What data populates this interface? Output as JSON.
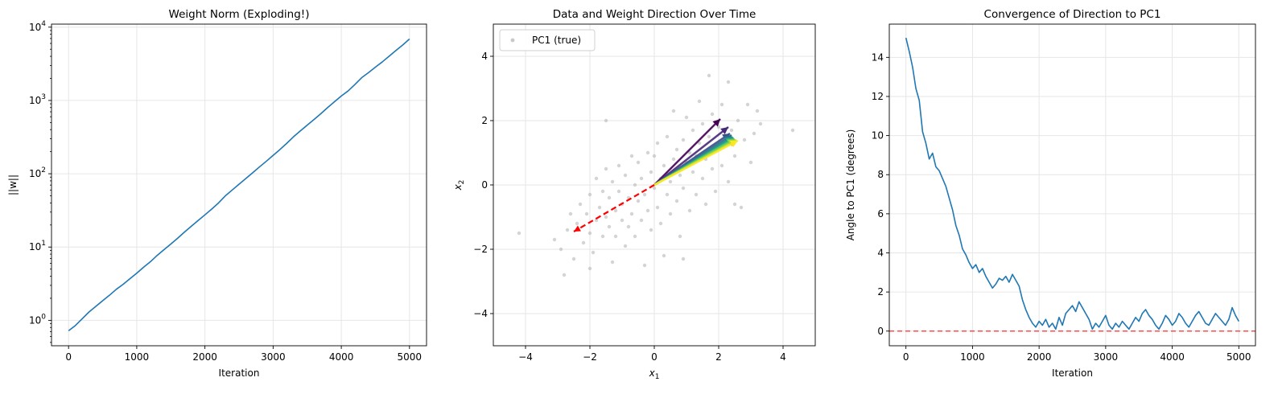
{
  "chart_data": [
    {
      "type": "line",
      "title": "Weight Norm (Exploding!)",
      "xlabel": "Iteration",
      "ylabel": "||w||",
      "xlim": [
        -250,
        5250
      ],
      "ylim": [
        0.45,
        11000
      ],
      "yscale": "log",
      "grid": true,
      "xticks": [
        0,
        1000,
        2000,
        3000,
        4000,
        5000
      ],
      "xticklabels": [
        "0",
        "1000",
        "2000",
        "3000",
        "4000",
        "5000"
      ],
      "yticks": [
        1,
        10,
        100,
        1000,
        10000
      ],
      "yticklabels": [
        "10^0",
        "10^1",
        "10^2",
        "10^3",
        "10^4"
      ],
      "series": [
        {
          "color": "#1f77b4",
          "x": [
            0,
            100,
            200,
            300,
            400,
            500,
            600,
            700,
            800,
            900,
            1000,
            1100,
            1200,
            1300,
            1400,
            1500,
            1600,
            1700,
            1800,
            1900,
            2000,
            2100,
            2200,
            2300,
            2400,
            2500,
            2600,
            2700,
            2800,
            2900,
            3000,
            3100,
            3200,
            3300,
            3400,
            3500,
            3600,
            3700,
            3800,
            3900,
            4000,
            4100,
            4200,
            4300,
            4400,
            4500,
            4600,
            4700,
            4800,
            4900,
            5000
          ],
          "y": [
            0.72,
            0.85,
            1.05,
            1.3,
            1.55,
            1.85,
            2.2,
            2.65,
            3.1,
            3.7,
            4.4,
            5.3,
            6.3,
            7.7,
            9.2,
            11.0,
            13.2,
            16.0,
            19.2,
            23.0,
            27.5,
            33.0,
            40.0,
            50.0,
            60.0,
            72.0,
            86.0,
            103,
            124,
            148,
            178,
            214,
            260,
            320,
            385,
            460,
            550,
            660,
            800,
            960,
            1150,
            1350,
            1650,
            2050,
            2400,
            2850,
            3350,
            4000,
            4800,
            5700,
            6900
          ]
        }
      ]
    },
    {
      "type": "scatter",
      "title": "Data and Weight Direction Over Time",
      "xlabel": "x",
      "xlabel_sub": "1",
      "ylabel": "x",
      "ylabel_sub": "2",
      "xlim": [
        -5,
        5
      ],
      "ylim": [
        -5,
        5
      ],
      "grid": true,
      "xticks": [
        -4,
        -2,
        0,
        2,
        4
      ],
      "xticklabels": [
        "−4",
        "−2",
        "0",
        "2",
        "4"
      ],
      "yticks": [
        -4,
        -2,
        0,
        2,
        4
      ],
      "yticklabels": [
        "−4",
        "−2",
        "0",
        "2",
        "4"
      ],
      "legend": {
        "position": "top-left",
        "entries": [
          "PC1 (true)"
        ]
      },
      "points_color": "#b0b0b0",
      "points": [
        [
          -4.2,
          -1.5
        ],
        [
          -3.1,
          -1.7
        ],
        [
          -2.9,
          -2.0
        ],
        [
          -2.7,
          -1.4
        ],
        [
          -2.6,
          -0.9
        ],
        [
          -2.5,
          -2.3
        ],
        [
          -2.4,
          -1.2
        ],
        [
          -2.3,
          -0.6
        ],
        [
          -2.2,
          -1.8
        ],
        [
          -2.1,
          -0.9
        ],
        [
          -2.0,
          -1.5
        ],
        [
          -2.0,
          -0.3
        ],
        [
          -1.9,
          -2.1
        ],
        [
          -1.8,
          -1.1
        ],
        [
          -1.8,
          0.2
        ],
        [
          -1.7,
          -0.7
        ],
        [
          -1.6,
          -1.6
        ],
        [
          -1.6,
          -0.2
        ],
        [
          -1.5,
          -1.0
        ],
        [
          -1.5,
          0.5
        ],
        [
          -1.4,
          -1.3
        ],
        [
          -1.4,
          -0.4
        ],
        [
          -1.3,
          -2.4
        ],
        [
          -1.3,
          0.1
        ],
        [
          -1.2,
          -0.8
        ],
        [
          -1.2,
          -1.6
        ],
        [
          -1.1,
          0.6
        ],
        [
          -1.1,
          -0.2
        ],
        [
          -1.0,
          -1.1
        ],
        [
          -1.0,
          -0.6
        ],
        [
          -0.9,
          -1.9
        ],
        [
          -0.9,
          0.3
        ],
        [
          -0.8,
          -0.4
        ],
        [
          -0.8,
          -1.3
        ],
        [
          -0.7,
          0.9
        ],
        [
          -0.7,
          -0.9
        ],
        [
          -0.6,
          0.0
        ],
        [
          -0.6,
          -1.6
        ],
        [
          -0.5,
          -0.5
        ],
        [
          -0.5,
          0.7
        ],
        [
          -0.4,
          -1.1
        ],
        [
          -0.4,
          0.2
        ],
        [
          -0.3,
          -2.5
        ],
        [
          -0.3,
          -0.3
        ],
        [
          -0.2,
          1.0
        ],
        [
          -0.2,
          -0.8
        ],
        [
          -0.1,
          0.4
        ],
        [
          -0.1,
          -1.4
        ],
        [
          0.0,
          -0.1
        ],
        [
          0.0,
          0.9
        ],
        [
          0.1,
          -0.7
        ],
        [
          0.1,
          1.3
        ],
        [
          0.2,
          0.2
        ],
        [
          0.2,
          -1.2
        ],
        [
          0.3,
          0.6
        ],
        [
          0.3,
          -2.2
        ],
        [
          0.4,
          -0.3
        ],
        [
          0.4,
          1.5
        ],
        [
          0.5,
          0.1
        ],
        [
          0.5,
          -0.9
        ],
        [
          0.6,
          0.8
        ],
        [
          0.6,
          2.3
        ],
        [
          0.7,
          -0.5
        ],
        [
          0.7,
          1.1
        ],
        [
          0.8,
          0.3
        ],
        [
          0.8,
          -1.6
        ],
        [
          0.9,
          1.4
        ],
        [
          0.9,
          -0.1
        ],
        [
          1.0,
          0.7
        ],
        [
          1.0,
          2.1
        ],
        [
          1.1,
          -0.8
        ],
        [
          1.1,
          1.0
        ],
        [
          1.2,
          0.4
        ],
        [
          1.2,
          1.7
        ],
        [
          1.3,
          -0.3
        ],
        [
          1.3,
          0.9
        ],
        [
          1.4,
          1.3
        ],
        [
          1.4,
          2.6
        ],
        [
          1.5,
          0.2
        ],
        [
          1.5,
          1.9
        ],
        [
          1.6,
          0.8
        ],
        [
          1.6,
          -0.6
        ],
        [
          1.7,
          1.5
        ],
        [
          1.7,
          3.4
        ],
        [
          1.8,
          0.5
        ],
        [
          1.8,
          2.2
        ],
        [
          1.9,
          1.1
        ],
        [
          1.9,
          -0.2
        ],
        [
          2.0,
          1.8
        ],
        [
          2.1,
          0.6
        ],
        [
          2.1,
          2.5
        ],
        [
          2.2,
          1.3
        ],
        [
          2.3,
          0.1
        ],
        [
          2.3,
          3.2
        ],
        [
          2.4,
          1.7
        ],
        [
          2.5,
          0.9
        ],
        [
          2.6,
          2.0
        ],
        [
          2.7,
          -0.7
        ],
        [
          2.8,
          1.4
        ],
        [
          2.9,
          2.5
        ],
        [
          3.0,
          0.7
        ],
        [
          3.1,
          1.6
        ],
        [
          3.2,
          2.3
        ],
        [
          3.3,
          1.9
        ],
        [
          4.3,
          1.7
        ],
        [
          -2.8,
          -2.8
        ],
        [
          -2.0,
          -2.6
        ],
        [
          0.9,
          -2.3
        ],
        [
          2.5,
          -0.6
        ],
        [
          -1.5,
          2.0
        ]
      ],
      "arrows_from": [
        0,
        0
      ],
      "arrows_colors": [
        "#440154",
        "#482878",
        "#3e4a89",
        "#31688e",
        "#26828e",
        "#1f9e89",
        "#35b779",
        "#6ece58",
        "#b5de2b",
        "#fde725"
      ],
      "arrows_to": [
        [
          2.05,
          2.05
        ],
        [
          2.3,
          1.8
        ],
        [
          2.35,
          1.6
        ],
        [
          2.4,
          1.55
        ],
        [
          2.42,
          1.5
        ],
        [
          2.45,
          1.48
        ],
        [
          2.48,
          1.45
        ],
        [
          2.5,
          1.43
        ],
        [
          2.55,
          1.4
        ],
        [
          2.6,
          1.38
        ]
      ],
      "pc1_arrow": {
        "to": [
          -2.5,
          -1.45
        ],
        "color": "#ff0000"
      }
    },
    {
      "type": "line",
      "title": "Convergence of Direction to PC1",
      "xlabel": "Iteration",
      "ylabel": "Angle to PC1 (degrees)",
      "xlim": [
        -250,
        5250
      ],
      "ylim": [
        -0.75,
        15.7
      ],
      "grid": true,
      "xticks": [
        0,
        1000,
        2000,
        3000,
        4000,
        5000
      ],
      "xticklabels": [
        "0",
        "1000",
        "2000",
        "3000",
        "4000",
        "5000"
      ],
      "yticks": [
        0,
        2,
        4,
        6,
        8,
        10,
        12,
        14
      ],
      "yticklabels": [
        "0",
        "2",
        "4",
        "6",
        "8",
        "10",
        "12",
        "14"
      ],
      "hline": {
        "y": 0,
        "color": "#ff4d4d",
        "dash": "6,4"
      },
      "series": [
        {
          "color": "#1f77b4",
          "x": [
            0,
            50,
            100,
            150,
            200,
            250,
            300,
            350,
            400,
            450,
            500,
            550,
            600,
            650,
            700,
            750,
            800,
            850,
            900,
            950,
            1000,
            1050,
            1100,
            1150,
            1200,
            1250,
            1300,
            1350,
            1400,
            1450,
            1500,
            1550,
            1600,
            1650,
            1700,
            1750,
            1800,
            1850,
            1900,
            1950,
            2000,
            2050,
            2100,
            2150,
            2200,
            2250,
            2300,
            2350,
            2400,
            2450,
            2500,
            2550,
            2600,
            2650,
            2700,
            2750,
            2800,
            2850,
            2900,
            2950,
            3000,
            3050,
            3100,
            3150,
            3200,
            3250,
            3300,
            3350,
            3400,
            3450,
            3500,
            3550,
            3600,
            3650,
            3700,
            3750,
            3800,
            3850,
            3900,
            3950,
            4000,
            4050,
            4100,
            4150,
            4200,
            4250,
            4300,
            4350,
            4400,
            4450,
            4500,
            4550,
            4600,
            4650,
            4700,
            4750,
            4800,
            4850,
            4900,
            4950,
            5000
          ],
          "y": [
            15.0,
            14.3,
            13.5,
            12.4,
            11.8,
            10.2,
            9.6,
            8.8,
            9.1,
            8.4,
            8.2,
            7.8,
            7.4,
            6.8,
            6.2,
            5.4,
            4.9,
            4.2,
            3.9,
            3.5,
            3.2,
            3.4,
            3.0,
            3.2,
            2.8,
            2.5,
            2.2,
            2.4,
            2.7,
            2.6,
            2.8,
            2.5,
            2.9,
            2.6,
            2.3,
            1.6,
            1.1,
            0.7,
            0.4,
            0.2,
            0.5,
            0.3,
            0.6,
            0.2,
            0.4,
            0.1,
            0.7,
            0.3,
            0.9,
            1.1,
            1.3,
            1.0,
            1.5,
            1.2,
            0.9,
            0.6,
            0.1,
            0.4,
            0.2,
            0.5,
            0.8,
            0.3,
            0.1,
            0.4,
            0.2,
            0.5,
            0.3,
            0.1,
            0.4,
            0.7,
            0.5,
            0.9,
            1.1,
            0.8,
            0.6,
            0.3,
            0.1,
            0.4,
            0.8,
            0.6,
            0.3,
            0.5,
            0.9,
            0.7,
            0.4,
            0.2,
            0.5,
            0.8,
            1.0,
            0.7,
            0.4,
            0.3,
            0.6,
            0.9,
            0.7,
            0.5,
            0.3,
            0.6,
            1.2,
            0.8,
            0.5
          ]
        }
      ]
    }
  ]
}
